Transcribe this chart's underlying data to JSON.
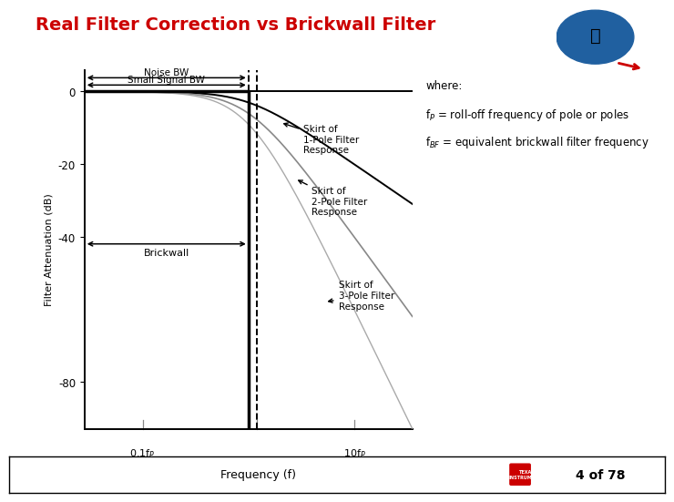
{
  "title": "Real Filter Correction vs Brickwall Filter",
  "title_color": "#CC0000",
  "title_fontsize": 14,
  "ylabel": "Filter Attenuation (dB)",
  "xlabel": "Frequency (f)",
  "background_color": "#FFFFFF",
  "plot_bg_color": "#FFFFFF",
  "yticks": [
    0,
    -20,
    -40,
    -80
  ],
  "ylim": [
    -93,
    6
  ],
  "noise_bw_label": "Noise BW",
  "small_signal_bw_label": "Small Signal BW",
  "brickwall_label": "Brickwall",
  "skirt1_label": "Skirt of\n1-Pole Filter\nResponse",
  "skirt2_label": "Skirt of\n2-Pole Filter\nResponse",
  "skirt3_label": "Skirt of\n3-Pole Filter\nResponse",
  "fp_label": "f$_P$",
  "fbf_label": "f$_{BF}$",
  "x01fp_label": "0.1f$_P$",
  "x10fp_label": "10f$_P$",
  "footer_text": "Frequency (f)",
  "page_text": "4 of 78",
  "where_line1": "where:",
  "where_line2": "f$_P$ = roll-off frequency of pole or poles",
  "where_line3": "f$_{BF}$ = equivalent brickwall filter frequency"
}
